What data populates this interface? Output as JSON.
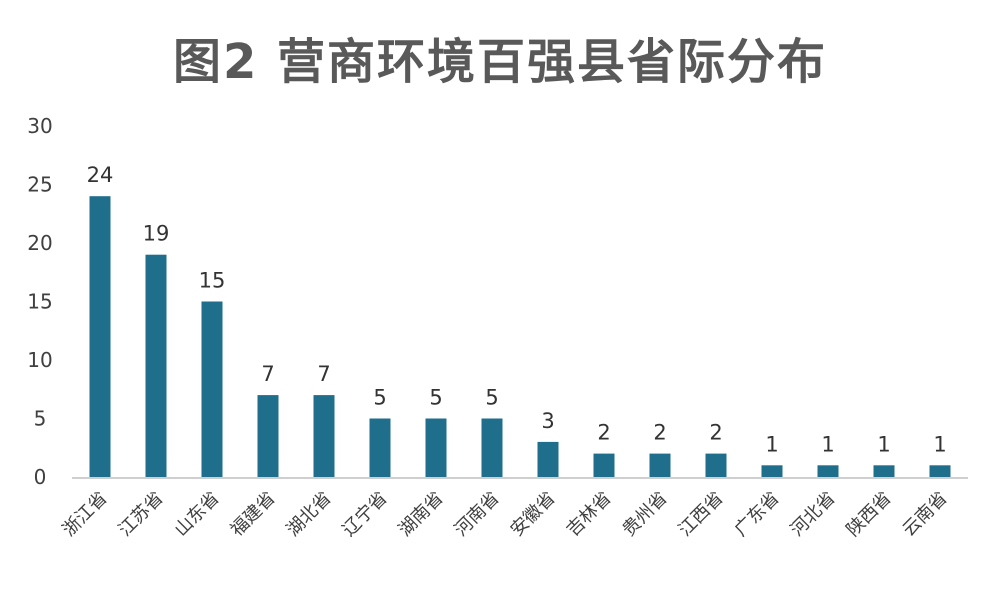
{
  "chart_data": {
    "type": "bar",
    "title": "图2 营商环境百强县省际分布",
    "xlabel": "",
    "ylabel": "",
    "categories": [
      "浙江省",
      "江苏省",
      "山东省",
      "福建省",
      "湖北省",
      "辽宁省",
      "湖南省",
      "河南省",
      "安徽省",
      "吉林省",
      "贵州省",
      "江西省",
      "广东省",
      "河北省",
      "陕西省",
      "云南省"
    ],
    "values": [
      24,
      19,
      15,
      7,
      7,
      5,
      5,
      5,
      3,
      2,
      2,
      2,
      1,
      1,
      1,
      1
    ],
    "ylim": [
      0,
      30
    ],
    "yticks": [
      0,
      5,
      10,
      15,
      20,
      25,
      30
    ],
    "bar_color": "#1F6E8C",
    "grid": false,
    "data_labels": true,
    "legend": "none"
  }
}
